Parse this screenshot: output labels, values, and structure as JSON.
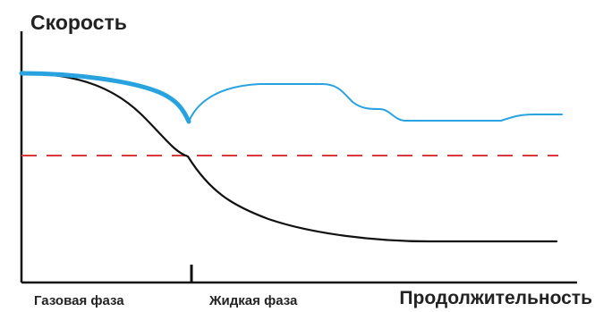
{
  "chart_data": {
    "type": "line",
    "ylabel": "Скорость",
    "xlabel": "Продолжительность",
    "phase_labels": [
      "Газовая фаза",
      "Жидкая фаза"
    ],
    "colors": {
      "upper_curve": "#29a3df",
      "lower_curve": "#111111",
      "threshold": "#d9393a",
      "axis": "#111111"
    },
    "threshold_line": "dashed",
    "phase_divider": "tick"
  }
}
